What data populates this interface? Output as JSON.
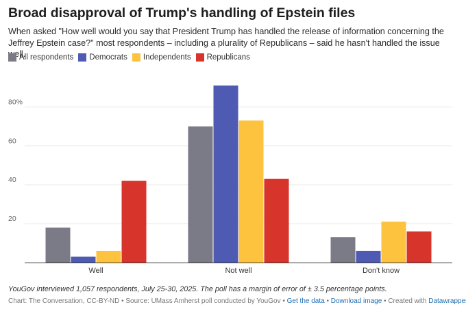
{
  "header": {
    "title": "Broad disapproval of Trump's handling of Epstein files",
    "subtitle": "When asked \"How well would you say that President Trump has handled the release of information concerning the Jeffrey Epstein case?\" most respondents – including a plurality of Republicans – said he hasn't handled the issue well."
  },
  "chart_data": {
    "type": "bar",
    "categories": [
      "Well",
      "Not well",
      "Don't know"
    ],
    "series": [
      {
        "name": "All respondents",
        "color": "#7b7a87",
        "values": [
          18,
          70,
          13
        ]
      },
      {
        "name": "Democrats",
        "color": "#4f5bb3",
        "values": [
          3,
          91,
          6
        ]
      },
      {
        "name": "Independents",
        "color": "#fdc33f",
        "values": [
          6,
          73,
          21
        ]
      },
      {
        "name": "Republicans",
        "color": "#d7352c",
        "values": [
          42,
          43,
          16
        ]
      }
    ],
    "yticks": [
      {
        "value": 20,
        "label": "20"
      },
      {
        "value": 40,
        "label": "40"
      },
      {
        "value": 60,
        "label": "60"
      },
      {
        "value": 80,
        "label": "80%"
      }
    ],
    "ylim": [
      0,
      100
    ],
    "grid": true,
    "legend_position": "top-left",
    "xlabel": "",
    "ylabel": ""
  },
  "footer": {
    "note": "YouGov interviewed 1,057 respondents, July 25-30, 2025. The poll has a margin of error of ± 3.5 percentage points.",
    "source": "Chart: The Conversation, CC-BY-ND • Source: UMass Amherst poll conducted by YouGov •",
    "get_data": "Get the data",
    "sep1": "•",
    "download": "Download image",
    "created_with": "• Created with",
    "datawrapper": "Datawrapper"
  }
}
